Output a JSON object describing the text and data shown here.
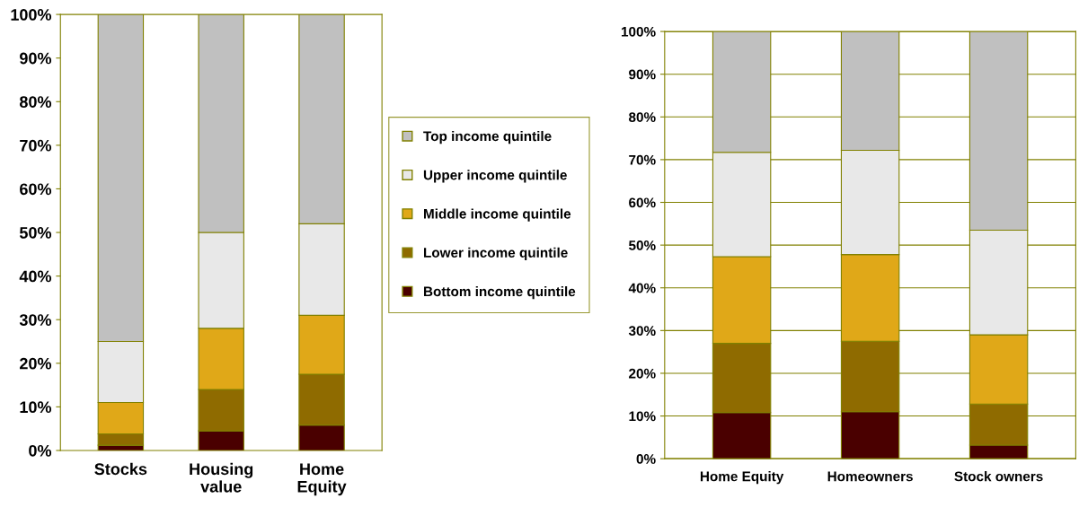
{
  "chart_data": [
    {
      "type": "bar",
      "stacked": true,
      "categories": [
        "Stocks",
        "Housing\nvalue",
        "Home\nEquity"
      ],
      "ylim": [
        0,
        100
      ],
      "yticks": [
        {
          "value": 0,
          "label": "0%"
        },
        {
          "value": 10,
          "label": "10%"
        },
        {
          "value": 20,
          "label": "20%"
        },
        {
          "value": 30,
          "label": "30%"
        },
        {
          "value": 40,
          "label": "40%"
        },
        {
          "value": 50,
          "label": "50%"
        },
        {
          "value": 60,
          "label": "60%"
        },
        {
          "value": 70,
          "label": "70%"
        },
        {
          "value": 80,
          "label": "80%"
        },
        {
          "value": 90,
          "label": "90%"
        },
        {
          "value": 100,
          "label": "100%"
        }
      ],
      "grid": false,
      "legend": "right",
      "series": [
        {
          "name": "Bottom income quintile",
          "color": "#4a0000",
          "values": [
            1.2,
            4.5,
            5.8
          ]
        },
        {
          "name": "Lower income quintile",
          "color": "#8f6b00",
          "values": [
            2.6,
            9.5,
            11.7
          ]
        },
        {
          "name": "Middle income quintile",
          "color": "#e0a818",
          "values": [
            7.2,
            14,
            13.5
          ]
        },
        {
          "name": "Upper income quintile",
          "color": "#e8e8e8",
          "values": [
            14,
            22,
            21
          ]
        },
        {
          "name": "Top income quintile",
          "color": "#c0c0c0",
          "values": [
            75,
            50,
            48
          ]
        }
      ]
    },
    {
      "type": "bar",
      "stacked": true,
      "categories": [
        "Home Equity",
        "Homeowners",
        "Stock owners"
      ],
      "ylim": [
        0,
        100
      ],
      "yticks": [
        {
          "value": 0,
          "label": "0%"
        },
        {
          "value": 10,
          "label": "10%"
        },
        {
          "value": 20,
          "label": "20%"
        },
        {
          "value": 30,
          "label": "30%"
        },
        {
          "value": 40,
          "label": "40%"
        },
        {
          "value": 50,
          "label": "50%"
        },
        {
          "value": 60,
          "label": "60%"
        },
        {
          "value": 70,
          "label": "70%"
        },
        {
          "value": 80,
          "label": "80%"
        },
        {
          "value": 90,
          "label": "90%"
        },
        {
          "value": 100,
          "label": "100%"
        }
      ],
      "grid": "y",
      "legend": false,
      "series": [
        {
          "color": "#4a0000",
          "values": [
            10.8,
            11,
            3.2
          ]
        },
        {
          "color": "#8f6b00",
          "values": [
            16.2,
            16.5,
            9.6
          ]
        },
        {
          "color": "#e0a818",
          "values": [
            20.3,
            20.3,
            16.2
          ]
        },
        {
          "color": "#e8e8e8",
          "values": [
            24.4,
            24.4,
            24.5
          ]
        },
        {
          "color": "#c0c0c0",
          "values": [
            28.3,
            27.8,
            46.5
          ]
        }
      ]
    }
  ]
}
